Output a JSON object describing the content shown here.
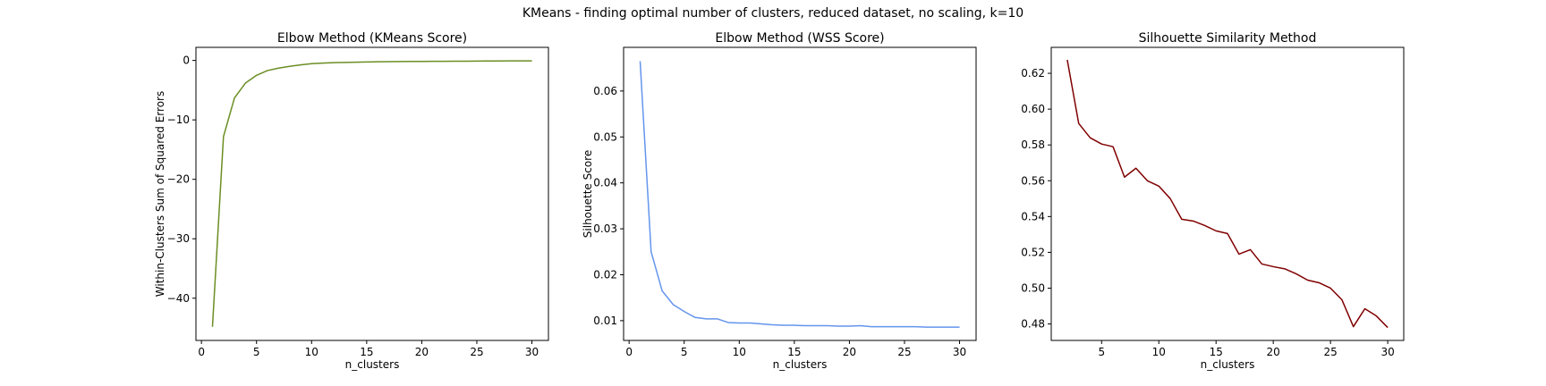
{
  "figure": {
    "suptitle": "KMeans - finding optimal number of clusters, reduced dataset, no scaling, k=10"
  },
  "chart_data": [
    {
      "type": "line",
      "title": "Elbow Method (KMeans Score)",
      "xlabel": "n_clusters",
      "ylabel": "Within-Clusters Sum of Squared Errors",
      "xlim": [
        -0.5,
        31.5
      ],
      "ylim": [
        -47.1,
        2.2
      ],
      "xticks": [
        0,
        5,
        10,
        15,
        20,
        25,
        30
      ],
      "yticks": [
        -40,
        -30,
        -20,
        -10,
        0
      ],
      "grid": false,
      "color": "#6b8e23",
      "series": [
        {
          "x": [
            1,
            2,
            3,
            4,
            5,
            6,
            7,
            8,
            9,
            10,
            11,
            12,
            13,
            14,
            15,
            16,
            17,
            18,
            19,
            20,
            21,
            22,
            23,
            24,
            25,
            26,
            27,
            28,
            29,
            30
          ],
          "values": [
            -44.8,
            -12.8,
            -6.3,
            -3.8,
            -2.5,
            -1.7,
            -1.3,
            -1.0,
            -0.75,
            -0.55,
            -0.45,
            -0.38,
            -0.33,
            -0.29,
            -0.26,
            -0.23,
            -0.2,
            -0.18,
            -0.17,
            -0.16,
            -0.15,
            -0.14,
            -0.13,
            -0.12,
            -0.11,
            -0.1,
            -0.09,
            -0.08,
            -0.08,
            -0.07
          ]
        }
      ]
    },
    {
      "type": "line",
      "title": "Elbow Method (WSS Score)",
      "xlabel": "n_clusters",
      "ylabel": "Silhouette Score",
      "xlim": [
        -0.5,
        31.5
      ],
      "ylim": [
        0.0057,
        0.0695
      ],
      "xticks": [
        0,
        5,
        10,
        15,
        20,
        25,
        30
      ],
      "yticks": [
        0.01,
        0.02,
        0.03,
        0.04,
        0.05,
        0.06
      ],
      "grid": false,
      "color": "#6495ed",
      "series": [
        {
          "x": [
            1,
            2,
            3,
            4,
            5,
            6,
            7,
            8,
            9,
            10,
            11,
            12,
            13,
            14,
            15,
            16,
            17,
            18,
            19,
            20,
            21,
            22,
            23,
            24,
            25,
            26,
            27,
            28,
            29,
            30
          ],
          "values": [
            0.0665,
            0.025,
            0.0165,
            0.0135,
            0.012,
            0.0107,
            0.0104,
            0.0104,
            0.0096,
            0.0095,
            0.0095,
            0.0093,
            0.0091,
            0.009,
            0.009,
            0.0089,
            0.0089,
            0.0089,
            0.0088,
            0.0088,
            0.0089,
            0.0087,
            0.0087,
            0.0087,
            0.0087,
            0.0087,
            0.0086,
            0.0086,
            0.0086,
            0.0086
          ]
        }
      ]
    },
    {
      "type": "line",
      "title": "Silhouette Similarity Method",
      "xlabel": "n_clusters",
      "ylabel": "",
      "xlim": [
        0.6,
        31.4
      ],
      "ylim": [
        0.4708,
        0.6345
      ],
      "xticks": [
        5,
        10,
        15,
        20,
        25,
        30
      ],
      "yticks": [
        0.48,
        0.5,
        0.52,
        0.54,
        0.56,
        0.58,
        0.6,
        0.62
      ],
      "grid": false,
      "color": "#800000",
      "series": [
        {
          "x": [
            2,
            3,
            4,
            5,
            6,
            7,
            8,
            9,
            10,
            11,
            12,
            13,
            14,
            15,
            16,
            17,
            18,
            19,
            20,
            21,
            22,
            23,
            24,
            25,
            26,
            27,
            28,
            29,
            30
          ],
          "values": [
            0.6275,
            0.592,
            0.584,
            0.5805,
            0.579,
            0.562,
            0.567,
            0.56,
            0.557,
            0.55,
            0.5385,
            0.5375,
            0.535,
            0.532,
            0.5305,
            0.519,
            0.5215,
            0.5135,
            0.512,
            0.5108,
            0.508,
            0.5045,
            0.503,
            0.5,
            0.4935,
            0.4785,
            0.4885,
            0.4845,
            0.478
          ]
        }
      ]
    }
  ]
}
